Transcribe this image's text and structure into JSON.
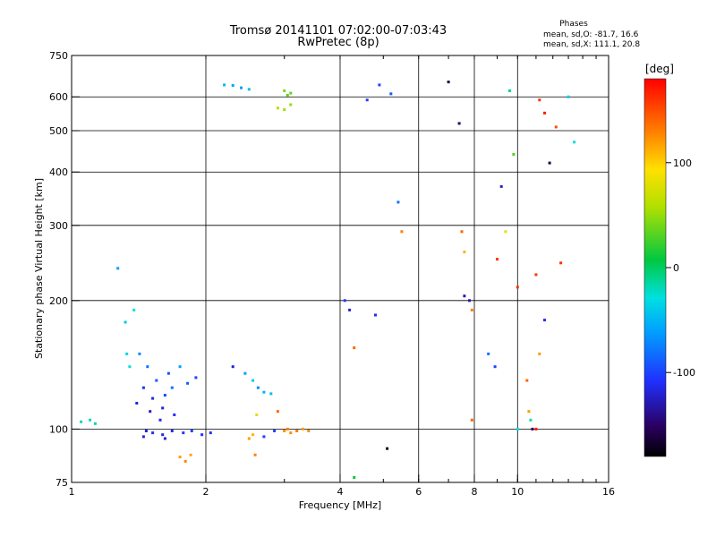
{
  "header": {
    "title": "Tromsø 20141101 07:02:00-07:03:43",
    "subtitle": "RwPretec (8p)"
  },
  "stats": {
    "heading": "Phases",
    "line1": "mean, sd,O: -81.7, 16.6",
    "line2": "mean, sd,X: 111.1, 20.8"
  },
  "chart_data": {
    "type": "scatter",
    "title": "Tromsø 20141101 07:02:00-07:03:43",
    "subtitle": "RwPretec (8p)",
    "xlabel": "Frequency [MHz]",
    "ylabel": "Stationary phase Virtual Height [km]",
    "x_scale": "log",
    "y_scale": "log",
    "xlim": [
      1,
      16
    ],
    "ylim": [
      75,
      750
    ],
    "x_ticks": [
      "1",
      "2",
      "4",
      "6",
      "8",
      "10",
      "16"
    ],
    "x_tick_values": [
      1,
      2,
      4,
      6,
      8,
      10,
      16
    ],
    "y_ticks": [
      "75",
      "100",
      "200",
      "300",
      "400",
      "500",
      "600",
      "750"
    ],
    "y_tick_values": [
      75,
      100,
      200,
      300,
      400,
      500,
      600,
      750
    ],
    "grid": true,
    "colorbar": {
      "label": "[deg]",
      "ticks": [
        "100",
        "0",
        "-100"
      ],
      "tick_values": [
        100,
        0,
        -100
      ],
      "range": [
        -180,
        180
      ],
      "colormap": "rainbow"
    },
    "points": [
      {
        "x": 1.05,
        "y": 104,
        "phase": -20
      },
      {
        "x": 1.1,
        "y": 105,
        "phase": -20
      },
      {
        "x": 1.13,
        "y": 103,
        "phase": -15
      },
      {
        "x": 1.27,
        "y": 238,
        "phase": -60
      },
      {
        "x": 1.32,
        "y": 178,
        "phase": -40
      },
      {
        "x": 1.38,
        "y": 190,
        "phase": -30
      },
      {
        "x": 1.33,
        "y": 150,
        "phase": -35
      },
      {
        "x": 1.35,
        "y": 140,
        "phase": -25
      },
      {
        "x": 1.42,
        "y": 150,
        "phase": -70
      },
      {
        "x": 1.48,
        "y": 140,
        "phase": -80
      },
      {
        "x": 1.55,
        "y": 130,
        "phase": -90
      },
      {
        "x": 1.62,
        "y": 120,
        "phase": -100
      },
      {
        "x": 1.45,
        "y": 125,
        "phase": -110
      },
      {
        "x": 1.52,
        "y": 118,
        "phase": -115
      },
      {
        "x": 1.6,
        "y": 112,
        "phase": -120
      },
      {
        "x": 1.7,
        "y": 108,
        "phase": -110
      },
      {
        "x": 1.75,
        "y": 140,
        "phase": -60
      },
      {
        "x": 1.82,
        "y": 128,
        "phase": -90
      },
      {
        "x": 1.9,
        "y": 132,
        "phase": -100
      },
      {
        "x": 1.68,
        "y": 125,
        "phase": -80
      },
      {
        "x": 1.4,
        "y": 115,
        "phase": -120
      },
      {
        "x": 1.5,
        "y": 110,
        "phase": -125
      },
      {
        "x": 1.58,
        "y": 105,
        "phase": -115
      },
      {
        "x": 1.65,
        "y": 135,
        "phase": -95
      },
      {
        "x": 1.47,
        "y": 99,
        "phase": -120
      },
      {
        "x": 1.52,
        "y": 98,
        "phase": -110
      },
      {
        "x": 1.6,
        "y": 97,
        "phase": -118
      },
      {
        "x": 1.68,
        "y": 99,
        "phase": -112
      },
      {
        "x": 1.78,
        "y": 98,
        "phase": -105
      },
      {
        "x": 1.86,
        "y": 99,
        "phase": -100
      },
      {
        "x": 1.96,
        "y": 97,
        "phase": -108
      },
      {
        "x": 2.05,
        "y": 98,
        "phase": -110
      },
      {
        "x": 1.45,
        "y": 96,
        "phase": -118
      },
      {
        "x": 1.62,
        "y": 95,
        "phase": -122
      },
      {
        "x": 1.75,
        "y": 86,
        "phase": 120
      },
      {
        "x": 1.8,
        "y": 84,
        "phase": 125
      },
      {
        "x": 1.85,
        "y": 87,
        "phase": 115
      },
      {
        "x": 2.3,
        "y": 140,
        "phase": -120
      },
      {
        "x": 2.45,
        "y": 135,
        "phase": -60
      },
      {
        "x": 2.55,
        "y": 130,
        "phase": -40
      },
      {
        "x": 2.62,
        "y": 125,
        "phase": -70
      },
      {
        "x": 2.7,
        "y": 122,
        "phase": -50
      },
      {
        "x": 2.8,
        "y": 121,
        "phase": -45
      },
      {
        "x": 2.5,
        "y": 95,
        "phase": 120
      },
      {
        "x": 2.55,
        "y": 97,
        "phase": 110
      },
      {
        "x": 2.58,
        "y": 87,
        "phase": 130
      },
      {
        "x": 2.7,
        "y": 96,
        "phase": -100
      },
      {
        "x": 2.85,
        "y": 99,
        "phase": -100
      },
      {
        "x": 3.0,
        "y": 99,
        "phase": 125
      },
      {
        "x": 3.05,
        "y": 100,
        "phase": 130
      },
      {
        "x": 3.1,
        "y": 98,
        "phase": 125
      },
      {
        "x": 3.2,
        "y": 99,
        "phase": 130
      },
      {
        "x": 3.3,
        "y": 100,
        "phase": 120
      },
      {
        "x": 3.4,
        "y": 99,
        "phase": 125
      },
      {
        "x": 2.6,
        "y": 108,
        "phase": 80
      },
      {
        "x": 2.9,
        "y": 110,
        "phase": 140
      },
      {
        "x": 2.2,
        "y": 640,
        "phase": -50
      },
      {
        "x": 2.3,
        "y": 638,
        "phase": -55
      },
      {
        "x": 2.4,
        "y": 630,
        "phase": -60
      },
      {
        "x": 2.5,
        "y": 625,
        "phase": -45
      },
      {
        "x": 3.0,
        "y": 620,
        "phase": 40
      },
      {
        "x": 3.05,
        "y": 605,
        "phase": 30
      },
      {
        "x": 3.1,
        "y": 612,
        "phase": 35
      },
      {
        "x": 2.9,
        "y": 565,
        "phase": 60
      },
      {
        "x": 3.0,
        "y": 560,
        "phase": 55
      },
      {
        "x": 3.1,
        "y": 575,
        "phase": 50
      },
      {
        "x": 4.6,
        "y": 590,
        "phase": -100
      },
      {
        "x": 4.9,
        "y": 640,
        "phase": -100
      },
      {
        "x": 5.2,
        "y": 610,
        "phase": -90
      },
      {
        "x": 4.2,
        "y": 190,
        "phase": -120
      },
      {
        "x": 4.3,
        "y": 155,
        "phase": 140
      },
      {
        "x": 4.1,
        "y": 200,
        "phase": -100
      },
      {
        "x": 4.8,
        "y": 185,
        "phase": -110
      },
      {
        "x": 5.1,
        "y": 90,
        "phase": -170
      },
      {
        "x": 4.3,
        "y": 77,
        "phase": 10
      },
      {
        "x": 5.4,
        "y": 340,
        "phase": -80
      },
      {
        "x": 5.5,
        "y": 290,
        "phase": 130
      },
      {
        "x": 7.0,
        "y": 650,
        "phase": -160
      },
      {
        "x": 7.4,
        "y": 520,
        "phase": -150
      },
      {
        "x": 7.6,
        "y": 260,
        "phase": 110
      },
      {
        "x": 7.5,
        "y": 290,
        "phase": 140
      },
      {
        "x": 7.6,
        "y": 205,
        "phase": -130
      },
      {
        "x": 7.8,
        "y": 200,
        "phase": -130
      },
      {
        "x": 7.9,
        "y": 190,
        "phase": 130
      },
      {
        "x": 7.9,
        "y": 105,
        "phase": 140
      },
      {
        "x": 8.6,
        "y": 150,
        "phase": -80
      },
      {
        "x": 8.9,
        "y": 140,
        "phase": -100
      },
      {
        "x": 9.0,
        "y": 250,
        "phase": 160
      },
      {
        "x": 9.2,
        "y": 370,
        "phase": -120
      },
      {
        "x": 9.4,
        "y": 290,
        "phase": 80
      },
      {
        "x": 9.8,
        "y": 440,
        "phase": 30
      },
      {
        "x": 10.0,
        "y": 215,
        "phase": 160
      },
      {
        "x": 10.0,
        "y": 100,
        "phase": -30
      },
      {
        "x": 10.5,
        "y": 130,
        "phase": 140
      },
      {
        "x": 10.6,
        "y": 110,
        "phase": 120
      },
      {
        "x": 10.8,
        "y": 100,
        "phase": -150
      },
      {
        "x": 11.0,
        "y": 230,
        "phase": 160
      },
      {
        "x": 11.5,
        "y": 550,
        "phase": 170
      },
      {
        "x": 11.8,
        "y": 420,
        "phase": -160
      },
      {
        "x": 12.2,
        "y": 510,
        "phase": 150
      },
      {
        "x": 12.5,
        "y": 245,
        "phase": 160
      },
      {
        "x": 13.0,
        "y": 600,
        "phase": -40
      },
      {
        "x": 13.4,
        "y": 470,
        "phase": -30
      },
      {
        "x": 11.2,
        "y": 590,
        "phase": 160
      },
      {
        "x": 11.0,
        "y": 100,
        "phase": 170
      },
      {
        "x": 10.7,
        "y": 105,
        "phase": -20
      },
      {
        "x": 11.5,
        "y": 180,
        "phase": -110
      },
      {
        "x": 11.2,
        "y": 150,
        "phase": 120
      },
      {
        "x": 9.6,
        "y": 620,
        "phase": -10
      }
    ]
  }
}
